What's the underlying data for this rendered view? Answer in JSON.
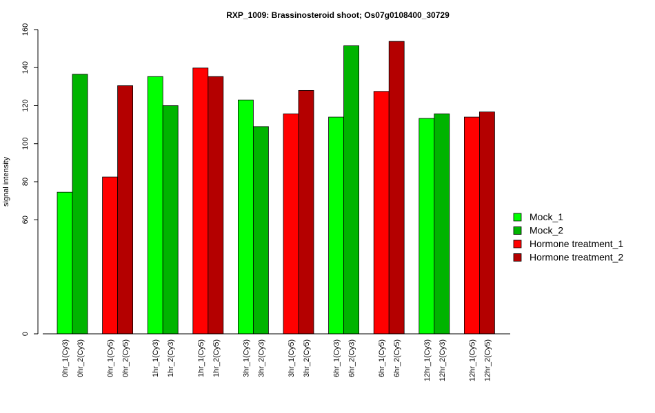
{
  "chart_data": {
    "type": "bar",
    "title": "RXP_1009: Brassinosteroid shoot; Os07g0108400_30729",
    "ylabel": "signal intensity",
    "xlabel": "",
    "ylim": [
      0,
      160
    ],
    "yticks": [
      0,
      60,
      80,
      100,
      120,
      140,
      160
    ],
    "groups": [
      {
        "labels": [
          "0hr_1(Cy3)",
          "0hr_2(Cy3)"
        ],
        "values": [
          74.5,
          136.5
        ],
        "colors": [
          "#00ff00",
          "#00b400"
        ]
      },
      {
        "labels": [
          "0hr_1(Cy5)",
          "0hr_2(Cy5)"
        ],
        "values": [
          82.5,
          130.5
        ],
        "colors": [
          "#ff0000",
          "#b40000"
        ]
      },
      {
        "labels": [
          "1hr_1(Cy3)",
          "1hr_2(Cy3)"
        ],
        "values": [
          135.3,
          120.0
        ],
        "colors": [
          "#00ff00",
          "#00b400"
        ]
      },
      {
        "labels": [
          "1hr_1(Cy5)",
          "1hr_2(Cy5)"
        ],
        "values": [
          139.8,
          135.3
        ],
        "colors": [
          "#ff0000",
          "#b40000"
        ]
      },
      {
        "labels": [
          "3hr_1(Cy3)",
          "3hr_2(Cy3)"
        ],
        "values": [
          123.0,
          109.0
        ],
        "colors": [
          "#00ff00",
          "#00b400"
        ]
      },
      {
        "labels": [
          "3hr_1(Cy5)",
          "3hr_2(Cy5)"
        ],
        "values": [
          115.7,
          128.0
        ],
        "colors": [
          "#ff0000",
          "#b40000"
        ]
      },
      {
        "labels": [
          "6hr_1(Cy3)",
          "6hr_2(Cy3)"
        ],
        "values": [
          114.0,
          151.5
        ],
        "colors": [
          "#00ff00",
          "#00b400"
        ]
      },
      {
        "labels": [
          "6hr_1(Cy5)",
          "6hr_2(Cy5)"
        ],
        "values": [
          127.5,
          153.8
        ],
        "colors": [
          "#ff0000",
          "#b40000"
        ]
      },
      {
        "labels": [
          "12hr_1(Cy3)",
          "12hr_2(Cy3)"
        ],
        "values": [
          113.3,
          115.7
        ],
        "colors": [
          "#00ff00",
          "#00b400"
        ]
      },
      {
        "labels": [
          "12hr_1(Cy5)",
          "12hr_2(Cy5)"
        ],
        "values": [
          114.0,
          116.7
        ],
        "colors": [
          "#ff0000",
          "#b40000"
        ]
      }
    ],
    "legend": {
      "placement": "right",
      "entries": [
        {
          "name": "Mock_1",
          "color": "#00ff00"
        },
        {
          "name": "Mock_2",
          "color": "#00b400"
        },
        {
          "name": "Hormone treatment_1",
          "color": "#ff0000"
        },
        {
          "name": "Hormone treatment_2",
          "color": "#b40000"
        }
      ]
    }
  }
}
